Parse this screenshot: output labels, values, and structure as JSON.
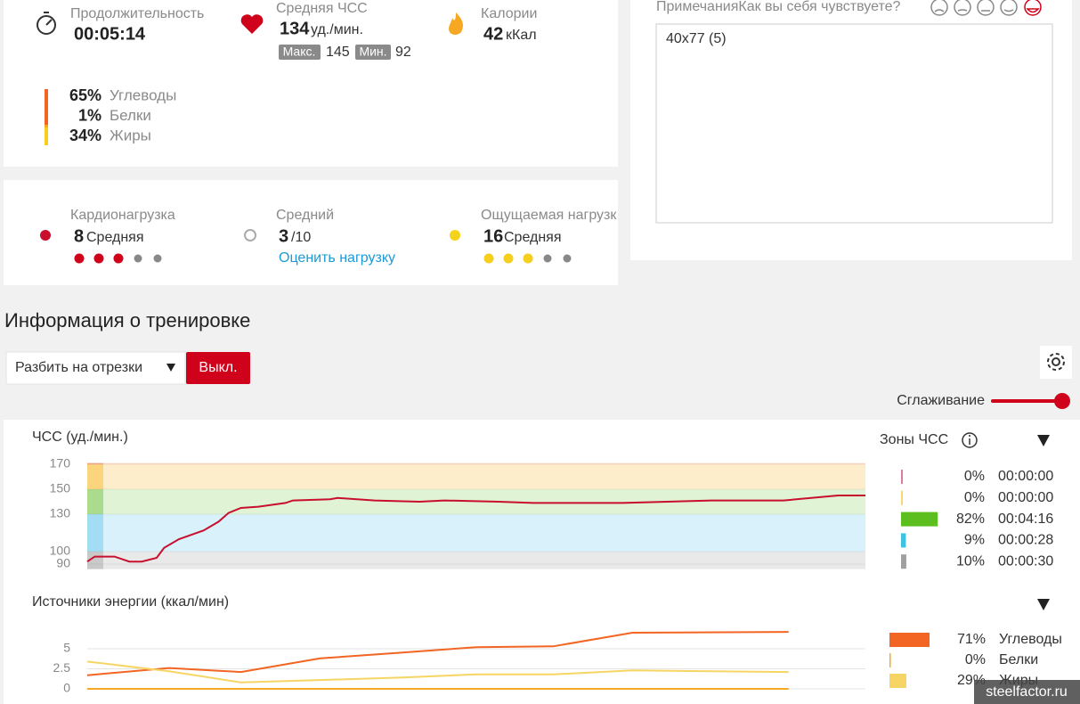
{
  "summary": {
    "duration": {
      "label": "Продолжительность",
      "value": "00:05:14"
    },
    "heart_rate": {
      "label": "Средняя ЧСС",
      "value": "134",
      "unit": "уд./мин.",
      "max_label": "Макс.",
      "max": "145",
      "min_label": "Мин.",
      "min": "92"
    },
    "calories": {
      "label": "Калории",
      "value": "42",
      "unit": "кКал"
    },
    "macros": [
      {
        "percent": "65%",
        "name": "Углеводы",
        "color": "#f26522"
      },
      {
        "percent": "1%",
        "name": "Белки",
        "color": "#f7a823"
      },
      {
        "percent": "34%",
        "name": "Жиры",
        "color": "#f5cf1c"
      }
    ]
  },
  "load": {
    "cardio": {
      "label": "Кардионагрузка",
      "value": "8",
      "level": "Средняя"
    },
    "rpe": {
      "label": "Средний",
      "value": "3",
      "scale": "/10",
      "link": "Оценить нагрузку"
    },
    "perceived": {
      "label": "Ощущаемая нагрузк",
      "value": "16",
      "level": "Средняя"
    }
  },
  "notes": {
    "label": "Примечания",
    "question": "Как вы себя чувствуете?",
    "text": "40x77 (5)"
  },
  "training": {
    "title": "Информация о тренировке",
    "split": "Разбить на отрезки",
    "toggle": "Выкл.",
    "smoothing": "Сглаживание"
  },
  "hr_chart": {
    "type": "line",
    "title": "ЧСС (уд./мин.)",
    "color": "#c8102e",
    "x": [
      0,
      3,
      11,
      17,
      22,
      28,
      31,
      37,
      47,
      53,
      57,
      62,
      69,
      80,
      83,
      98,
      101,
      116,
      134,
      144,
      166,
      180,
      198,
      216,
      252,
      281,
      303,
      314
    ],
    "values": [
      92,
      96,
      96,
      92,
      92,
      95,
      103,
      110,
      117,
      124,
      131,
      135,
      136,
      139,
      141,
      142,
      143,
      141,
      140,
      141,
      140,
      139,
      139,
      139,
      141,
      141,
      145,
      145
    ],
    "xlim": [
      0,
      314
    ],
    "ylim": [
      86,
      171
    ],
    "yticks": [
      90,
      100,
      130,
      150,
      170
    ],
    "zone_colors": [
      "#e9e9e9",
      "#d9f1fa",
      "#e0f3d4",
      "#fdedcb",
      "#fbd8ca"
    ],
    "zone_strip_colors": [
      "#c9c9c9",
      "#a3ddf3",
      "#abdc8e",
      "#fbd47e",
      "#f4a88e"
    ]
  },
  "hr_zones": {
    "title": "Зоны ЧСС",
    "rows": [
      {
        "color": "#e07ba0",
        "percent": 0,
        "percent_label": "0%",
        "time": "00:00:00"
      },
      {
        "color": "#f5d76e",
        "percent": 0,
        "percent_label": "0%",
        "time": "00:00:00"
      },
      {
        "color": "#5cbf1f",
        "percent": 82,
        "percent_label": "82%",
        "time": "00:04:16"
      },
      {
        "color": "#3fc3e0",
        "percent": 9,
        "percent_label": "9%",
        "time": "00:00:28"
      },
      {
        "color": "#a0a0a0",
        "percent": 10,
        "percent_label": "10%",
        "time": "00:00:30"
      }
    ]
  },
  "energy_chart": {
    "type": "line",
    "title": "Источники энергии (ккал/мин)",
    "x": [
      0,
      33,
      62,
      94,
      126,
      157,
      188,
      220,
      283
    ],
    "xlim": [
      0,
      314
    ],
    "ylim": [
      0,
      8
    ],
    "yticks": [
      0,
      2.5,
      5
    ],
    "series": [
      {
        "name": "Углеводы",
        "color": "#f26522",
        "values": [
          1.7,
          2.6,
          2.1,
          3.8,
          4.5,
          5.2,
          5.3,
          7.0,
          7.1
        ],
        "percent": 71,
        "percent_label": "71%"
      },
      {
        "name": "Белки",
        "color": "#f7a823",
        "values": [
          0,
          0,
          0,
          0,
          0,
          0,
          0,
          0,
          0
        ],
        "percent": 0,
        "percent_label": "0%"
      },
      {
        "name": "Жиры",
        "color": "#f7d564",
        "values": [
          3.4,
          2.2,
          0.8,
          1.1,
          1.4,
          1.8,
          1.8,
          2.3,
          2.1
        ],
        "percent": 29,
        "percent_label": "29%"
      }
    ]
  },
  "watermark": "steelfactor.ru"
}
